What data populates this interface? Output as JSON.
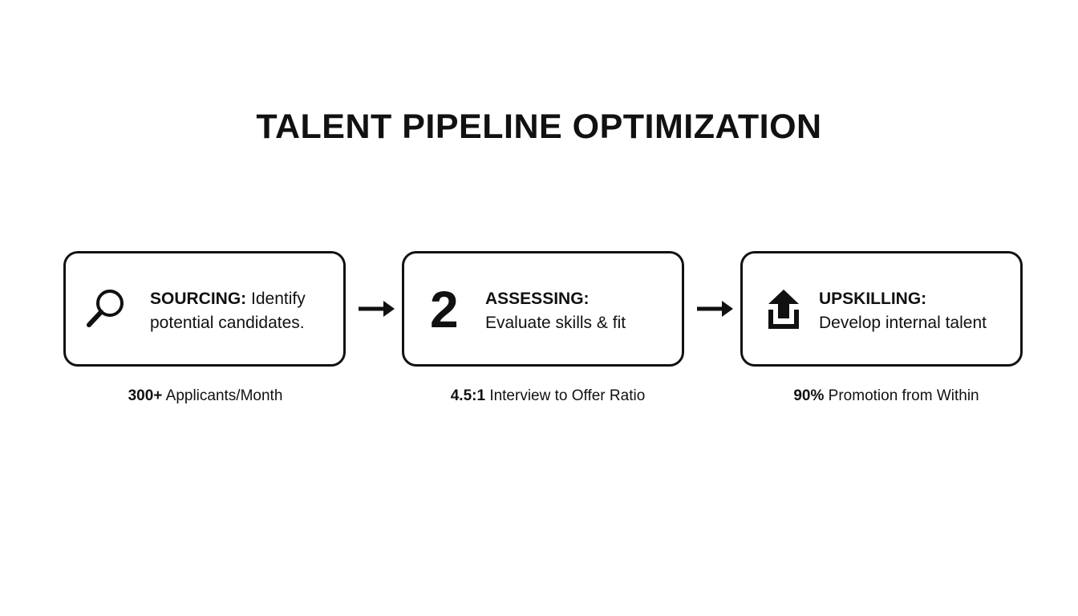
{
  "title": "TALENT PIPELINE OPTIMIZATION",
  "steps": [
    {
      "label": "SOURCING:",
      "text": "Identify potential candidates.",
      "metric": {
        "value": "300+",
        "text": "Applicants/Month"
      }
    },
    {
      "icon_text": "2",
      "label": "ASSESSING:",
      "text": "Evaluate skills & fit",
      "metric": {
        "value": "4.5:1",
        "text": "Interview to Offer Ratio"
      }
    },
    {
      "label": "UPSKILLING:",
      "text": "Develop internal talent",
      "metric": {
        "value": "90%",
        "text": "Promotion from Within"
      }
    }
  ]
}
